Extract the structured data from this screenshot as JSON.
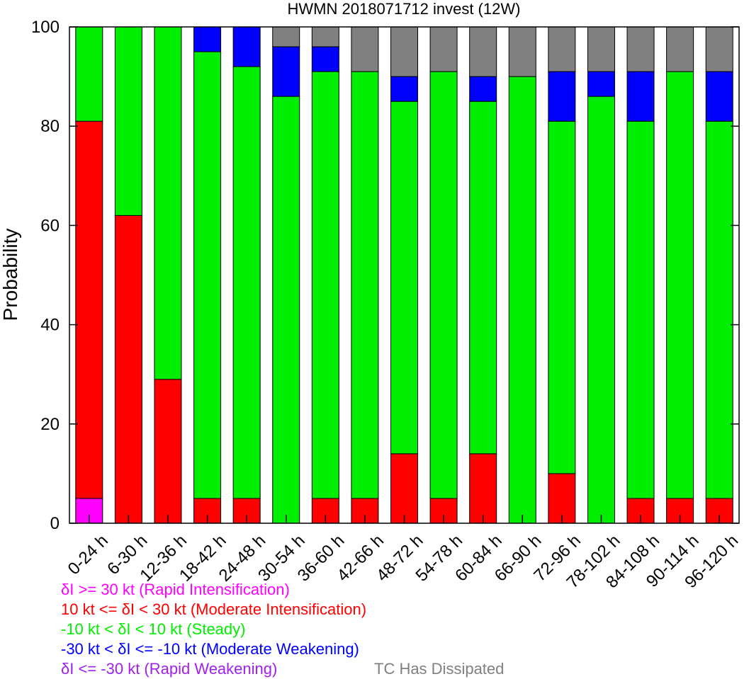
{
  "chart_data": {
    "type": "bar",
    "stacked": true,
    "title": "HWMN 2018071712 invest (12W)",
    "ylabel": "Probability",
    "xlabel": "",
    "ylim": [
      0,
      100
    ],
    "yticks": [
      0,
      20,
      40,
      60,
      80,
      100
    ],
    "grid": false,
    "categories": [
      "0-24 h",
      "6-30 h",
      "12-36 h",
      "18-42 h",
      "24-48 h",
      "30-54 h",
      "36-60 h",
      "42-66 h",
      "48-72 h",
      "54-78 h",
      "60-84 h",
      "66-90 h",
      "72-96 h",
      "78-102 h",
      "84-108 h",
      "90-114 h",
      "96-120 h"
    ],
    "series": [
      {
        "name": "δI >= 30 kt (Rapid Intensification)",
        "color": "#ff00ff",
        "values": [
          5,
          0,
          0,
          0,
          0,
          0,
          0,
          0,
          0,
          0,
          0,
          0,
          0,
          0,
          0,
          0,
          0
        ]
      },
      {
        "name": "10 kt <= δI < 30 kt (Moderate Intensification)",
        "color": "#ff0000",
        "values": [
          76,
          62,
          29,
          5,
          5,
          0,
          5,
          5,
          14,
          5,
          14,
          0,
          10,
          0,
          5,
          5,
          5
        ]
      },
      {
        "name": "-10 kt < δI < 10 kt (Steady)",
        "color": "#00ee00",
        "values": [
          19,
          38,
          71,
          90,
          87,
          86,
          86,
          86,
          71,
          86,
          71,
          90,
          71,
          86,
          76,
          86,
          76
        ]
      },
      {
        "name": "-30 kt < δI <= -10 kt (Moderate Weakening)",
        "color": "#0000ff",
        "values": [
          0,
          0,
          0,
          5,
          8,
          10,
          5,
          0,
          5,
          0,
          5,
          0,
          10,
          5,
          10,
          0,
          10
        ]
      },
      {
        "name": "δI <= -30 kt (Rapid Weakening)",
        "color": "#a020f0",
        "values": [
          0,
          0,
          0,
          0,
          0,
          0,
          0,
          0,
          0,
          0,
          0,
          0,
          0,
          0,
          0,
          0,
          0
        ]
      },
      {
        "name": "TC Has Dissipated",
        "color": "#808080",
        "values": [
          0,
          0,
          0,
          0,
          0,
          4,
          4,
          9,
          10,
          9,
          10,
          10,
          9,
          9,
          9,
          9,
          9
        ]
      }
    ],
    "legend": [
      {
        "text": "δI >= 30 kt (Rapid Intensification)",
        "color": "#ff00ff"
      },
      {
        "text": "10 kt <= δI < 30 kt (Moderate Intensification)",
        "color": "#ff0000"
      },
      {
        "text": "-10 kt < δI < 10 kt (Steady)",
        "color": "#00ee00"
      },
      {
        "text": "-30 kt < δI <= -10 kt (Moderate Weakening)",
        "color": "#0000ff"
      },
      {
        "text": "δI <= -30 kt (Rapid Weakening)",
        "color": "#a020f0"
      },
      {
        "text": "TC Has Dissipated",
        "color": "#808080"
      }
    ],
    "legend_placement": "bottom"
  }
}
